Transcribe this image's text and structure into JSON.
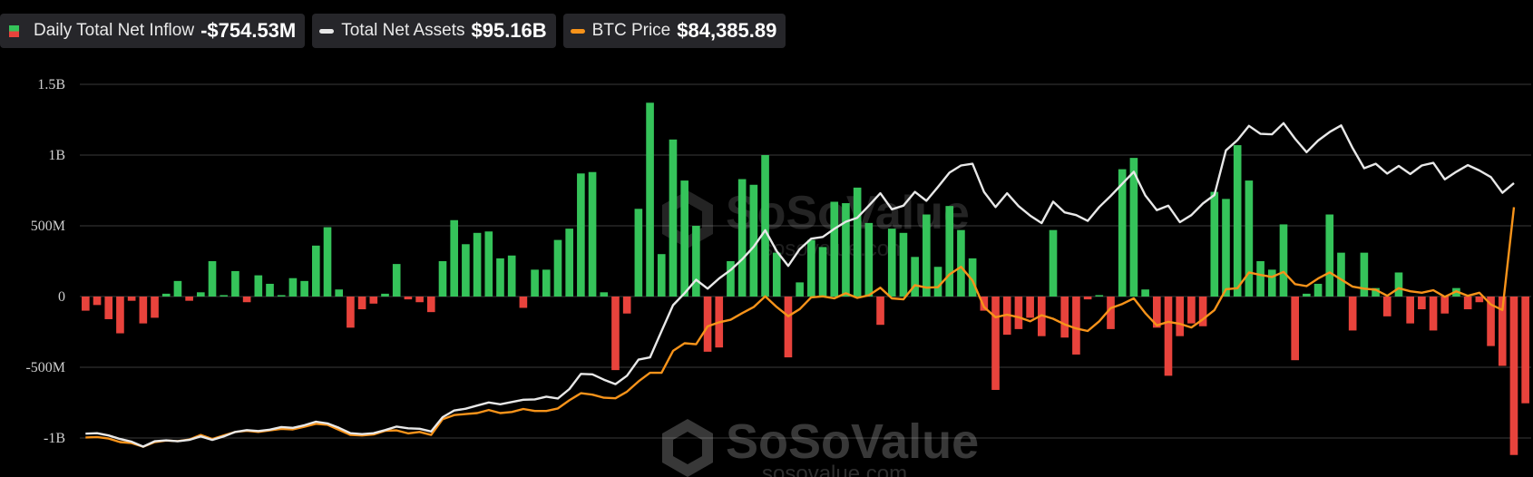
{
  "legend": {
    "inflow": {
      "label": "Daily Total Net Inflow",
      "value": "-$754.53M",
      "pos_color": "#35c35a",
      "neg_color": "#e8433c"
    },
    "assets": {
      "label": "Total Net Assets",
      "value": "$95.16B",
      "color": "#e8e8e8"
    },
    "btc": {
      "label": "BTC Price",
      "value": "$84,385.89",
      "color": "#f7931a"
    }
  },
  "watermark": {
    "brand": "SoSoValue",
    "site": "sosovalue.com"
  },
  "chart_data": {
    "type": "bar",
    "title": "",
    "xlabel": "",
    "ylabel": "",
    "ylim": [
      -1250000000,
      1500000000
    ],
    "y_ticks": [
      {
        "value": 1500000000,
        "label": "1.5B"
      },
      {
        "value": 1000000000,
        "label": "1B"
      },
      {
        "value": 500000000,
        "label": "500M"
      },
      {
        "value": 0,
        "label": "0"
      },
      {
        "value": -500000000,
        "label": "-500M"
      },
      {
        "value": -1000000000,
        "label": "-1B"
      }
    ],
    "grid": true,
    "legend_position": "top-left",
    "series": [
      {
        "name": "Daily Total Net Inflow",
        "kind": "bar",
        "unit": "USD",
        "values": [
          -100000000,
          -60000000,
          -160000000,
          -260000000,
          -30000000,
          -190000000,
          -150000000,
          20000000,
          110000000,
          -30000000,
          30000000,
          250000000,
          10000000,
          180000000,
          -40000000,
          150000000,
          90000000,
          10000000,
          130000000,
          110000000,
          360000000,
          490000000,
          50000000,
          -220000000,
          -90000000,
          -50000000,
          20000000,
          230000000,
          -20000000,
          -40000000,
          -110000000,
          250000000,
          540000000,
          370000000,
          450000000,
          460000000,
          270000000,
          290000000,
          -80000000,
          190000000,
          190000000,
          400000000,
          480000000,
          870000000,
          880000000,
          30000000,
          -520000000,
          -120000000,
          620000000,
          1370000000,
          300000000,
          1110000000,
          820000000,
          500000000,
          -390000000,
          -360000000,
          250000000,
          830000000,
          790000000,
          1000000000,
          310000000,
          -430000000,
          100000000,
          400000000,
          350000000,
          670000000,
          660000000,
          770000000,
          520000000,
          -200000000,
          480000000,
          450000000,
          280000000,
          580000000,
          210000000,
          640000000,
          470000000,
          270000000,
          -100000000,
          -660000000,
          -270000000,
          -230000000,
          -150000000,
          -280000000,
          470000000,
          -290000000,
          -410000000,
          -20000000,
          10000000,
          -230000000,
          900000000,
          980000000,
          50000000,
          -220000000,
          -560000000,
          -280000000,
          -190000000,
          -210000000,
          740000000,
          690000000,
          1070000000,
          820000000,
          250000000,
          190000000,
          510000000,
          -450000000,
          20000000,
          90000000,
          580000000,
          310000000,
          -240000000,
          310000000,
          60000000,
          -140000000,
          170000000,
          -190000000,
          -90000000,
          -240000000,
          -120000000,
          60000000,
          -90000000,
          -40000000,
          -350000000,
          -490000000,
          -1120000000,
          -754530000
        ]
      },
      {
        "name": "Total Net Assets",
        "kind": "line",
        "unit": "USD",
        "values": [
          39.0,
          39.1,
          38.6,
          37.8,
          37.2,
          36.1,
          37.3,
          37.5,
          37.3,
          37.6,
          38.4,
          37.6,
          38.4,
          39.4,
          39.8,
          39.6,
          39.9,
          40.5,
          40.3,
          40.9,
          41.7,
          41.3,
          40.3,
          39.1,
          38.9,
          39.1,
          39.8,
          40.6,
          40.2,
          40.1,
          39.5,
          42.7,
          44.2,
          44.6,
          45.3,
          46.0,
          45.6,
          46.1,
          46.6,
          46.7,
          47.3,
          46.9,
          49.0,
          52.4,
          52.3,
          51.1,
          50.1,
          52.0,
          55.6,
          56.1,
          62.0,
          67.8,
          70.5,
          73.5,
          71.5,
          73.8,
          75.7,
          78.1,
          80.9,
          84.6,
          79.9,
          76.6,
          80.4,
          82.7,
          83.1,
          84.9,
          86.5,
          87.4,
          90.1,
          92.9,
          89.3,
          90.1,
          93.2,
          91.2,
          94.3,
          97.5,
          99.1,
          99.5,
          93.2,
          89.8,
          92.9,
          90.0,
          87.9,
          86.2,
          91.0,
          88.6,
          88.0,
          86.7,
          89.8,
          92.3,
          95.0,
          97.7,
          92.4,
          89.1,
          90.1,
          86.4,
          88.0,
          90.6,
          92.5,
          102.5,
          104.8,
          108.0,
          106.2,
          106.1,
          108.6,
          105.1,
          102.1,
          104.7,
          106.6,
          108.1,
          103.0,
          98.5,
          99.5,
          97.3,
          99.0,
          97.2,
          99.1,
          99.7,
          96.0,
          97.7,
          99.2,
          98.0,
          96.5,
          93.0,
          95.16
        ]
      },
      {
        "name": "BTC Price",
        "kind": "line",
        "unit": "USD",
        "values": [
          39200,
          39300,
          39000,
          38300,
          38100,
          37400,
          38300,
          38600,
          38500,
          38800,
          39700,
          38900,
          39600,
          40300,
          40500,
          40300,
          40600,
          40900,
          40800,
          41300,
          41900,
          41700,
          40700,
          39700,
          39600,
          39800,
          40500,
          40600,
          40000,
          40300,
          39700,
          42800,
          43600,
          43800,
          44000,
          44600,
          44000,
          44200,
          44800,
          44400,
          44400,
          44900,
          46500,
          47900,
          47600,
          47000,
          46900,
          48200,
          50200,
          51900,
          51900,
          56200,
          57700,
          57500,
          61000,
          61800,
          62300,
          63600,
          64800,
          66900,
          64800,
          63000,
          64400,
          66700,
          66900,
          66500,
          67500,
          66600,
          67100,
          68600,
          66500,
          66300,
          69100,
          68600,
          68700,
          71200,
          72700,
          70000,
          64800,
          62800,
          63300,
          62800,
          62000,
          63200,
          62500,
          61400,
          60600,
          60100,
          62000,
          64600,
          65400,
          66500,
          63600,
          61200,
          61900,
          61500,
          60800,
          62400,
          64200,
          68300,
          68500,
          71600,
          71100,
          70700,
          71700,
          69300,
          68900,
          70400,
          71600,
          70200,
          68800,
          68400,
          68200,
          67000,
          68500,
          67900,
          67600,
          68100,
          66800,
          67900,
          67000,
          67600,
          65300,
          64200,
          84385.89
        ]
      }
    ]
  }
}
